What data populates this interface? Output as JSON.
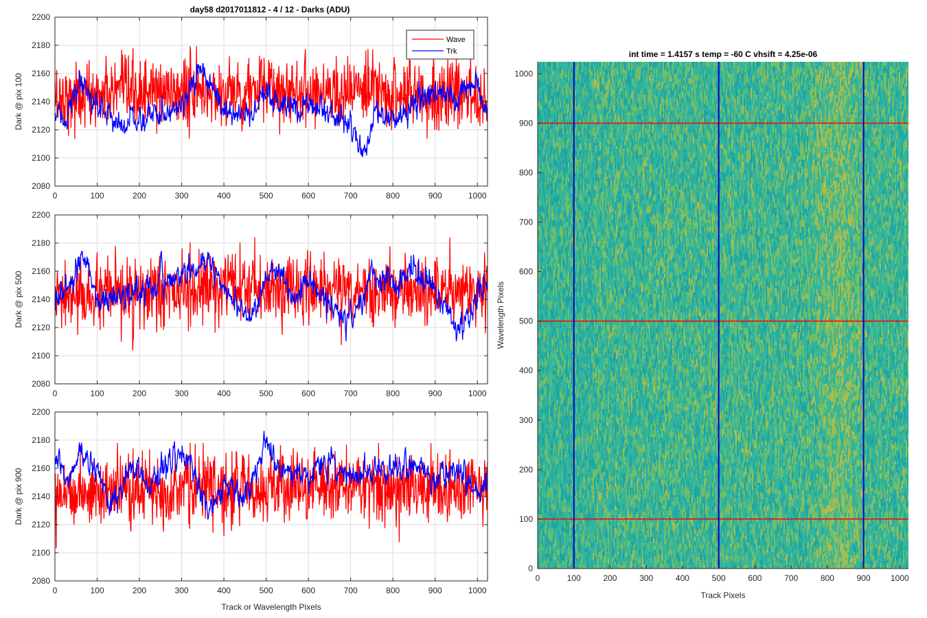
{
  "figure": {
    "suptitle": "day58 d2017011812 - 4 / 12 - Darks (ADU)",
    "xlabel": "Track or Wavelength Pixels"
  },
  "legend": {
    "placement": "top-right",
    "entries": [
      {
        "label": "Wave",
        "color": "#ff0000"
      },
      {
        "label": "Trk",
        "color": "#0000ff"
      }
    ]
  },
  "chart_data": [
    {
      "type": "line",
      "ylabel": "Dark @ pix 100",
      "xlim": [
        0,
        1024
      ],
      "ylim": [
        2080,
        2200
      ],
      "xticks": [
        0,
        100,
        200,
        300,
        400,
        500,
        600,
        700,
        800,
        900,
        1000
      ],
      "yticks": [
        2080,
        2100,
        2120,
        2140,
        2160,
        2180,
        2200
      ],
      "grid": true,
      "series": [
        {
          "name": "Wave",
          "color": "#ff0000",
          "level": 2145,
          "noise": 12,
          "min": 2098,
          "max": 2182,
          "x": [
            0,
            100,
            200,
            300,
            400,
            500,
            600,
            700,
            800,
            900,
            1024
          ],
          "y": [
            2142,
            2145,
            2146,
            2147,
            2146,
            2148,
            2149,
            2147,
            2146,
            2145,
            2144
          ]
        },
        {
          "name": "Trk",
          "color": "#0000ff",
          "level": 2135,
          "noise": 4,
          "min": 2098,
          "max": 2167,
          "x": [
            0,
            20,
            60,
            100,
            150,
            200,
            250,
            300,
            350,
            400,
            450,
            500,
            550,
            600,
            650,
            700,
            730,
            760,
            800,
            850,
            900,
            950,
            1000,
            1024
          ],
          "y": [
            2130,
            2128,
            2150,
            2138,
            2125,
            2127,
            2132,
            2140,
            2160,
            2135,
            2130,
            2142,
            2135,
            2140,
            2132,
            2125,
            2100,
            2135,
            2125,
            2140,
            2148,
            2138,
            2158,
            2125
          ]
        }
      ]
    },
    {
      "type": "line",
      "ylabel": "Dark @ pix 500",
      "xlim": [
        0,
        1024
      ],
      "ylim": [
        2080,
        2200
      ],
      "xticks": [
        0,
        100,
        200,
        300,
        400,
        500,
        600,
        700,
        800,
        900,
        1000
      ],
      "yticks": [
        2080,
        2100,
        2120,
        2140,
        2160,
        2180,
        2200
      ],
      "grid": true,
      "series": [
        {
          "name": "Wave",
          "color": "#ff0000",
          "level": 2145,
          "noise": 12,
          "min": 2096,
          "max": 2184,
          "x": [
            0,
            100,
            200,
            300,
            400,
            500,
            600,
            700,
            800,
            900,
            1024
          ],
          "y": [
            2140,
            2142,
            2143,
            2145,
            2147,
            2148,
            2148,
            2147,
            2146,
            2146,
            2145
          ]
        },
        {
          "name": "Trk",
          "color": "#0000ff",
          "level": 2145,
          "noise": 4,
          "min": 2107,
          "max": 2174,
          "x": [
            0,
            30,
            70,
            100,
            150,
            200,
            250,
            300,
            370,
            400,
            450,
            500,
            530,
            560,
            600,
            650,
            700,
            750,
            800,
            850,
            900,
            950,
            1000,
            1024
          ],
          "y": [
            2140,
            2148,
            2168,
            2140,
            2142,
            2145,
            2152,
            2158,
            2165,
            2150,
            2128,
            2150,
            2162,
            2140,
            2155,
            2135,
            2125,
            2155,
            2150,
            2160,
            2150,
            2118,
            2140,
            2150
          ]
        }
      ]
    },
    {
      "type": "line",
      "ylabel": "Dark @ pix 900",
      "xlim": [
        0,
        1024
      ],
      "ylim": [
        2080,
        2200
      ],
      "xticks": [
        0,
        100,
        200,
        300,
        400,
        500,
        600,
        700,
        800,
        900,
        1000
      ],
      "yticks": [
        2080,
        2100,
        2120,
        2140,
        2160,
        2180,
        2200
      ],
      "grid": true,
      "series": [
        {
          "name": "Wave",
          "color": "#ff0000",
          "level": 2145,
          "noise": 12,
          "min": 2099,
          "max": 2178,
          "x": [
            0,
            100,
            200,
            300,
            400,
            500,
            600,
            700,
            800,
            900,
            1024
          ],
          "y": [
            2145,
            2142,
            2145,
            2146,
            2145,
            2146,
            2147,
            2148,
            2147,
            2146,
            2145
          ]
        },
        {
          "name": "Trk",
          "color": "#0000ff",
          "level": 2155,
          "noise": 4,
          "min": 2119,
          "max": 2187,
          "x": [
            0,
            30,
            60,
            80,
            100,
            130,
            180,
            230,
            280,
            330,
            360,
            400,
            450,
            500,
            530,
            600,
            650,
            700,
            800,
            850,
            900,
            950,
            1000,
            1024
          ],
          "y": [
            2165,
            2150,
            2172,
            2165,
            2160,
            2132,
            2160,
            2150,
            2170,
            2160,
            2130,
            2150,
            2135,
            2180,
            2160,
            2155,
            2165,
            2155,
            2160,
            2165,
            2150,
            2160,
            2140,
            2150
          ]
        }
      ]
    },
    {
      "type": "heatmap",
      "title": "int time = 1.4157 s    temp = -60 C    vhsift = 4.25e-06",
      "xlabel": "Track Pixels",
      "ylabel": "Wavelength Pixels",
      "xlim": [
        0,
        1024
      ],
      "ylim": [
        0,
        1024
      ],
      "xticks": [
        0,
        100,
        200,
        300,
        400,
        500,
        600,
        700,
        800,
        900,
        1000
      ],
      "yticks": [
        0,
        100,
        200,
        300,
        400,
        500,
        600,
        700,
        800,
        900,
        1000
      ],
      "colormap": [
        "#1aa3a8",
        "#35b59a",
        "#7cbf5e",
        "#b8bd45"
      ],
      "hot_columns": [
        {
          "x": 830,
          "width": 90
        }
      ],
      "vertical_markers": {
        "x": [
          100,
          500,
          900
        ],
        "color": "#0000c8"
      },
      "horizontal_markers": {
        "y": [
          100,
          500,
          900
        ],
        "color": "#ff0000"
      }
    }
  ]
}
